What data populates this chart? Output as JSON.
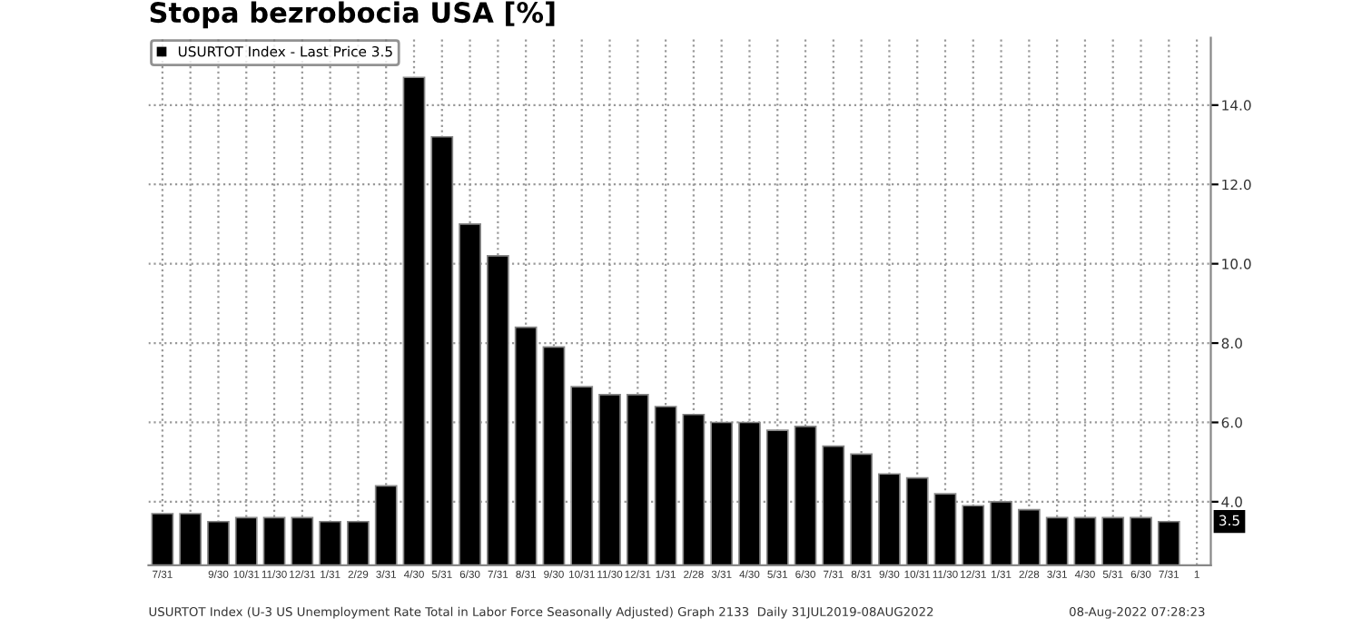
{
  "chart_data": {
    "type": "bar",
    "title": "Stopa bezrobocia USA [%]",
    "categories": [
      "7/31",
      null,
      "9/30",
      "10/31",
      "11/30",
      "12/31",
      "1/31",
      "2/29",
      "3/31",
      "4/30",
      "5/31",
      "6/30",
      "7/31",
      "8/31",
      "9/30",
      "10/31",
      "11/30",
      "12/31",
      "1/31",
      "2/28",
      "3/31",
      "4/30",
      "5/31",
      "6/30",
      "7/31",
      "8/31",
      "9/30",
      "10/31",
      "11/30",
      "12/31",
      "1/31",
      "2/28",
      "3/31",
      "4/30",
      "5/31",
      "6/30",
      "7/31",
      "1"
    ],
    "series": [
      {
        "name": "USURTOT Index - Last Price 3.5",
        "color": "#000000",
        "values": [
          3.7,
          3.7,
          3.5,
          3.6,
          3.6,
          3.6,
          3.5,
          3.5,
          4.4,
          14.7,
          13.2,
          11.0,
          10.2,
          8.4,
          7.9,
          6.9,
          6.7,
          6.7,
          6.4,
          6.2,
          6.0,
          6.0,
          5.8,
          5.9,
          5.4,
          5.2,
          4.7,
          4.6,
          4.2,
          3.9,
          4.0,
          3.8,
          3.6,
          3.6,
          3.6,
          3.6,
          3.5,
          null
        ]
      }
    ],
    "ylim": [
      2.4,
      15.7
    ],
    "yticks": [
      {
        "value": 4,
        "label": "4.0"
      },
      {
        "value": 6,
        "label": "6.0"
      },
      {
        "value": 8,
        "label": "8.0"
      },
      {
        "value": 10,
        "label": "10.0"
      },
      {
        "value": 12,
        "label": "12.0"
      },
      {
        "value": 14,
        "label": "14.0"
      }
    ],
    "grid": true,
    "legend": "top left",
    "annotations": [
      {
        "text": "3.5",
        "y": 3.5
      },
      "USURTOT Index (U-3 US Unemployment Rate Total in Labor Force Seasonally Adjusted) Graph 2133  Daily 31JUL2019-08AUG2022",
      "08-Aug-2022 07:28:23"
    ]
  }
}
